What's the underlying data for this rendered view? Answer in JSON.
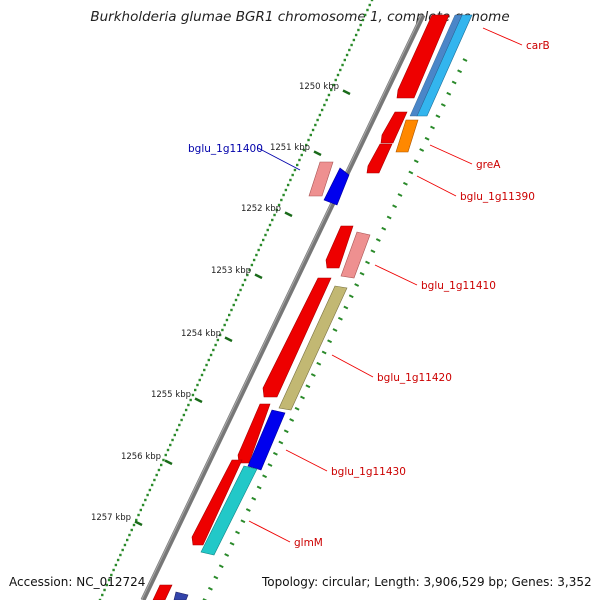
{
  "title": "Burkholderia glumae BGR1 chromosome 1, complete genome",
  "footer": {
    "accession": "Accession: NC_012724",
    "summary": "Topology: circular; Length: 3,906,529 bp; Genes: 3,352"
  },
  "ticks": [
    {
      "kbp": 1250,
      "label": "1250 kbp"
    },
    {
      "kbp": 1251,
      "label": "1251 kbp"
    },
    {
      "kbp": 1252,
      "label": "1252 kbp"
    },
    {
      "kbp": 1253,
      "label": "1253 kbp"
    },
    {
      "kbp": 1254,
      "label": "1254 kbp"
    },
    {
      "kbp": 1255,
      "label": "1255 kbp"
    },
    {
      "kbp": 1256,
      "label": "1256 kbp"
    },
    {
      "kbp": 1257,
      "label": "1257 kbp"
    }
  ],
  "gene_labels": [
    {
      "text": "carB",
      "color": "#cc0000"
    },
    {
      "text": "greA",
      "color": "#cc0000"
    },
    {
      "text": "bglu_1g11390",
      "color": "#cc0000"
    },
    {
      "text": "bglu_1g11400",
      "color": "#0000aa"
    },
    {
      "text": "bglu_1g11410",
      "color": "#cc0000"
    },
    {
      "text": "bglu_1g11420",
      "color": "#cc0000"
    },
    {
      "text": "bglu_1g11430",
      "color": "#cc0000"
    },
    {
      "text": "glmM",
      "color": "#cc0000"
    }
  ],
  "colors": {
    "backbone": "#777777",
    "cds_red": "#ee0000",
    "tick_green": "#2a8a2a",
    "gene_blue": "#0000ee",
    "gene_pink": "#ee9090",
    "gene_orange": "#ff8800",
    "gene_khaki": "#c2b873",
    "gene_cyan": "#22c8c8",
    "gene_skyblue": "#33b5ee"
  }
}
